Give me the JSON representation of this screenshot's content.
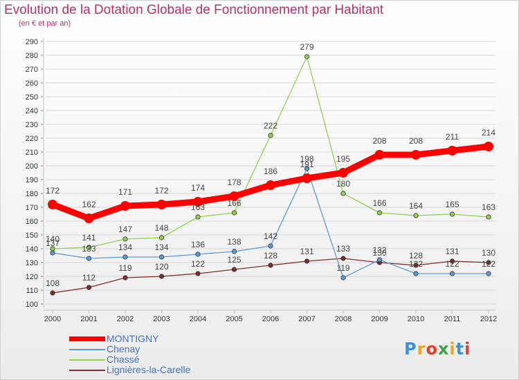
{
  "title": "Evolution de la Dotation Globale de Fonctionnement par Habitant",
  "subtitle": "(en € et par an)",
  "logo_text": "Proxiti",
  "colors": {
    "title": "#b3306b",
    "axis": "#c0c0c0",
    "grid": "#d8d8d8",
    "tick_text": "#333333",
    "label_text": "#444444"
  },
  "chart_data": {
    "type": "line",
    "title": "Evolution de la Dotation Globale de Fonctionnement par Habitant",
    "subtitle": "(en € et par an)",
    "xlabel": "",
    "ylabel": "",
    "x": [
      "2000",
      "2001",
      "2002",
      "2003",
      "2004",
      "2005",
      "2006",
      "2007",
      "2008",
      "2009",
      "2010",
      "2011",
      "2012"
    ],
    "ylim": [
      100,
      290
    ],
    "yticks": [
      100,
      110,
      120,
      130,
      140,
      150,
      160,
      170,
      180,
      190,
      200,
      210,
      220,
      230,
      240,
      250,
      260,
      270,
      280,
      290
    ],
    "grid": true,
    "legend_position": "bottom-left",
    "series": [
      {
        "name": "MONTIGNY",
        "color": "#ff0000",
        "values": [
          172,
          162,
          171,
          172,
          174,
          178,
          186,
          191,
          195,
          208,
          208,
          211,
          214
        ]
      },
      {
        "name": "Chenay",
        "color": "#5b9bd5",
        "values": [
          137,
          133,
          134,
          134,
          136,
          138,
          142,
          198,
          119,
          132,
          122,
          122,
          122
        ]
      },
      {
        "name": "Chassé",
        "color": "#92d050",
        "values": [
          140,
          141,
          147,
          148,
          163,
          166,
          222,
          279,
          180,
          166,
          164,
          165,
          163
        ]
      },
      {
        "name": "Lignières-la-Carelle",
        "color": "#7b2c2c",
        "values": [
          108,
          112,
          119,
          120,
          122,
          125,
          128,
          131,
          133,
          130,
          128,
          131,
          130
        ]
      }
    ]
  }
}
